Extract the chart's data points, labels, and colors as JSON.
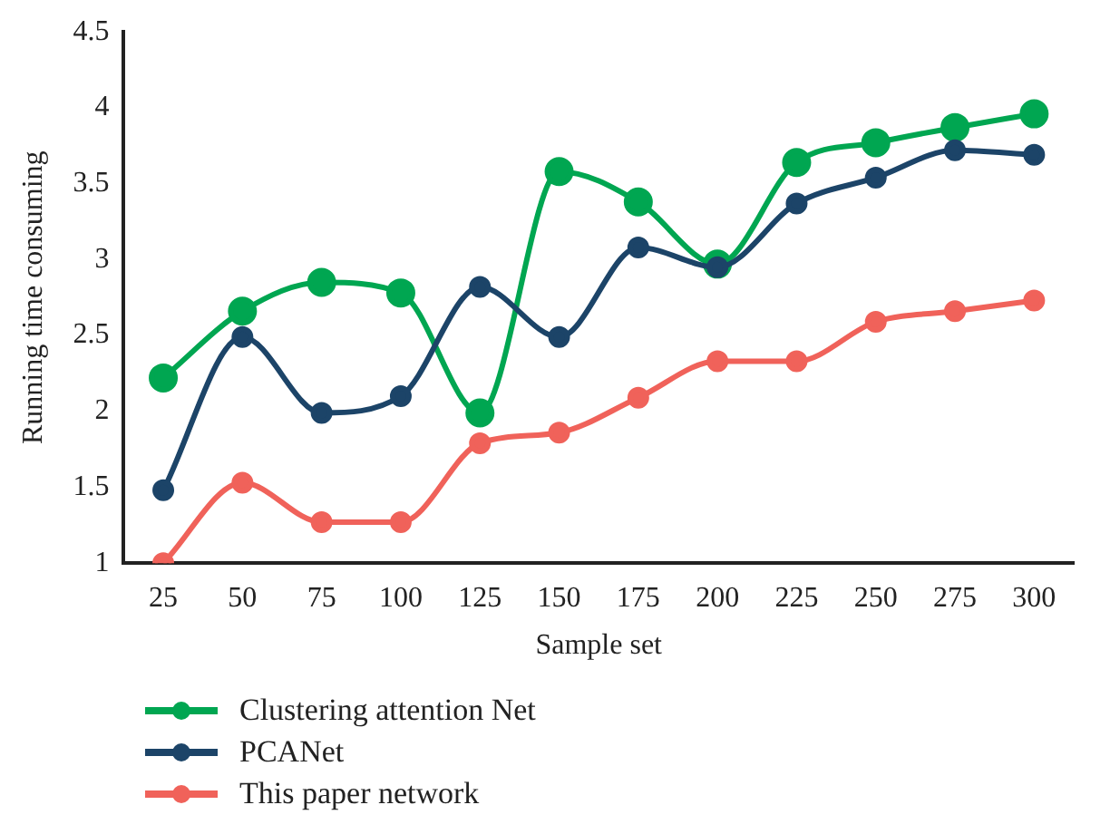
{
  "chart_data": {
    "type": "line",
    "xlabel": "Sample set",
    "ylabel": "Running time consuming",
    "categories": [
      "25",
      "50",
      "75",
      "100",
      "125",
      "150",
      "175",
      "200",
      "225",
      "250",
      "275",
      "300"
    ],
    "ylim": [
      1,
      4.5
    ],
    "yticks": [
      1,
      1.5,
      2,
      2.5,
      3,
      3.5,
      4,
      4.5
    ],
    "grid": false,
    "legend": "bottom",
    "marker": "circle",
    "line_style": "solid",
    "series": [
      {
        "name": "Clustering attention Net",
        "color": "#00a651",
        "values": [
          2.22,
          2.66,
          2.85,
          2.78,
          1.99,
          3.58,
          3.38,
          2.97,
          3.64,
          3.77,
          3.87,
          3.96
        ]
      },
      {
        "name": "PCANet",
        "color": "#1c4468",
        "values": [
          1.48,
          2.49,
          1.99,
          2.1,
          2.82,
          2.49,
          3.08,
          2.95,
          3.37,
          3.54,
          3.72,
          3.69
        ]
      },
      {
        "name": "This paper network",
        "color": "#f0625a",
        "values": [
          1.0,
          1.53,
          1.27,
          1.27,
          1.79,
          1.86,
          2.09,
          2.33,
          2.33,
          2.59,
          2.66,
          2.73
        ]
      }
    ]
  }
}
